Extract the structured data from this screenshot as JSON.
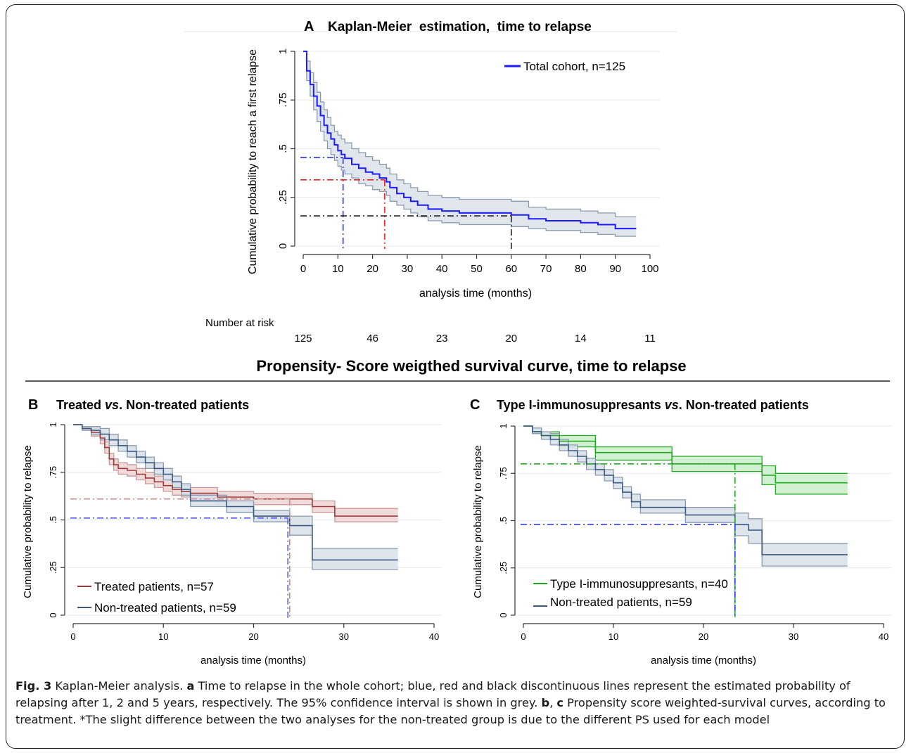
{
  "section_title": "Propensity- Score weigthed survival curve, time to relapse",
  "caption": {
    "label": "Fig. 3",
    "s1": " Kaplan-Meier analysis. ",
    "a": "a",
    "s2": " Time to relapse in the whole cohort; blue, red and black discontinuous lines represent the estimated probability of relapsing after 1, 2 and 5 years, respectively. The 95% confidence interval is shown in grey. ",
    "b": "b",
    "s3": ", ",
    "c": "c",
    "s4": " Propensity score weighted-survival curves, according to treatment. *The slight difference between the two analyses for the non-treated group is due to the different PS used for each model"
  },
  "chart_data": [
    {
      "type": "line",
      "panel_letter": "A",
      "title": "Kaplan-Meier  estimation,  time to relapse",
      "xlabel": "analysis time (months)",
      "ylabel": "Cumulative probability to reach a first relapse",
      "xlim": [
        0,
        100
      ],
      "ylim": [
        0,
        1
      ],
      "xticks": [
        "0",
        "10",
        "20",
        "30",
        "40",
        "50",
        "60",
        "70",
        "80",
        "90",
        "100"
      ],
      "yticks": [
        "0",
        ".25",
        ".5",
        ".75",
        "1"
      ],
      "grid": true,
      "legend_position": "top-right",
      "colors": {
        "line": "#1a1aff",
        "ci_fill": "#dde3ea",
        "ci_line": "#8a9bb0",
        "ref_1y": "#2233ee",
        "ref_2y": "#ee2222",
        "ref_5y": "#222222"
      },
      "series": [
        {
          "name": "Total cohort, n=125",
          "x": [
            0,
            1,
            2,
            3,
            4,
            5,
            6,
            7,
            8,
            9,
            10,
            11,
            12,
            14,
            16,
            18,
            20,
            22,
            24,
            25,
            27,
            29,
            31,
            33,
            36,
            40,
            45,
            50,
            60,
            65,
            70,
            80,
            85,
            90,
            96
          ],
          "y": [
            1.0,
            0.9,
            0.83,
            0.77,
            0.72,
            0.67,
            0.62,
            0.58,
            0.55,
            0.52,
            0.49,
            0.47,
            0.45,
            0.42,
            0.4,
            0.38,
            0.37,
            0.35,
            0.33,
            0.3,
            0.27,
            0.25,
            0.23,
            0.21,
            0.19,
            0.18,
            0.17,
            0.17,
            0.16,
            0.14,
            0.13,
            0.12,
            0.11,
            0.09,
            0.09
          ],
          "ci_lower": [
            1.0,
            0.85,
            0.77,
            0.7,
            0.64,
            0.59,
            0.54,
            0.5,
            0.47,
            0.44,
            0.41,
            0.39,
            0.37,
            0.35,
            0.32,
            0.31,
            0.29,
            0.28,
            0.26,
            0.23,
            0.21,
            0.19,
            0.17,
            0.15,
            0.13,
            0.12,
            0.11,
            0.11,
            0.1,
            0.09,
            0.08,
            0.07,
            0.06,
            0.05,
            0.05
          ],
          "ci_upper": [
            1.0,
            0.95,
            0.89,
            0.84,
            0.79,
            0.74,
            0.7,
            0.66,
            0.62,
            0.59,
            0.57,
            0.55,
            0.53,
            0.5,
            0.48,
            0.46,
            0.44,
            0.42,
            0.4,
            0.37,
            0.34,
            0.32,
            0.3,
            0.28,
            0.26,
            0.25,
            0.24,
            0.24,
            0.23,
            0.2,
            0.19,
            0.18,
            0.17,
            0.15,
            0.15
          ]
        }
      ],
      "reference_lines": [
        {
          "x": 11.5,
          "y": 0.455,
          "color": "ref_1y"
        },
        {
          "x": 23.5,
          "y": 0.34,
          "color": "ref_2y"
        },
        {
          "x": 60,
          "y": 0.155,
          "color": "ref_5y"
        }
      ],
      "risk_table": {
        "label": "Number at risk",
        "x": [
          0,
          20,
          40,
          60,
          80,
          100
        ],
        "values": [
          "125",
          "46",
          "23",
          "20",
          "14",
          "11"
        ]
      }
    },
    {
      "type": "line",
      "panel_letter": "B",
      "title": "Treated vs. Non-treated patients",
      "title_parts": {
        "pre": "Treated ",
        "italic": "vs",
        "post": ". Non-treated patients"
      },
      "xlabel": "analysis time (months)",
      "ylabel": "Cumulative probability to relapse",
      "xlim": [
        0,
        40
      ],
      "ylim": [
        0,
        1
      ],
      "xticks": [
        "0",
        "10",
        "20",
        "30",
        "40"
      ],
      "yticks": [
        "0",
        ".25",
        ".5",
        ".75",
        "1"
      ],
      "grid": true,
      "legend_position": "bottom-left",
      "series": [
        {
          "name": "Treated patients, n=57",
          "color": "#a03a3a",
          "fill": "#efd6d6",
          "edge": "#c99a9a",
          "x": [
            0,
            1,
            2,
            3,
            3.5,
            4,
            4.5,
            5,
            6,
            7,
            8,
            9,
            10,
            11,
            12,
            13,
            16,
            20,
            24,
            26.5,
            29,
            36
          ],
          "y": [
            1.0,
            0.98,
            0.96,
            0.93,
            0.88,
            0.82,
            0.79,
            0.77,
            0.76,
            0.74,
            0.72,
            0.7,
            0.68,
            0.66,
            0.65,
            0.64,
            0.62,
            0.61,
            0.61,
            0.57,
            0.52,
            0.52
          ],
          "ci_lower": [
            1.0,
            0.97,
            0.94,
            0.9,
            0.85,
            0.79,
            0.76,
            0.74,
            0.73,
            0.71,
            0.69,
            0.67,
            0.65,
            0.63,
            0.62,
            0.61,
            0.59,
            0.58,
            0.58,
            0.54,
            0.49,
            0.49
          ],
          "ci_upper": [
            1.0,
            0.99,
            0.98,
            0.96,
            0.91,
            0.85,
            0.82,
            0.8,
            0.79,
            0.77,
            0.75,
            0.73,
            0.71,
            0.69,
            0.68,
            0.67,
            0.65,
            0.64,
            0.64,
            0.6,
            0.56,
            0.56
          ]
        },
        {
          "name": "Non-treated patients, n=59",
          "color": "#3a5a80",
          "fill": "#d9e1ea",
          "edge": "#8a9bb0",
          "x": [
            0,
            1,
            2,
            3,
            4,
            5,
            6,
            7,
            8,
            9,
            10,
            11,
            12,
            13,
            17,
            20,
            24,
            26.5,
            36
          ],
          "y": [
            1.0,
            0.98,
            0.97,
            0.95,
            0.92,
            0.89,
            0.86,
            0.83,
            0.8,
            0.77,
            0.74,
            0.7,
            0.66,
            0.6,
            0.57,
            0.52,
            0.47,
            0.29,
            0.29
          ],
          "ci_lower": [
            1.0,
            0.97,
            0.95,
            0.92,
            0.89,
            0.86,
            0.83,
            0.8,
            0.77,
            0.74,
            0.71,
            0.67,
            0.63,
            0.57,
            0.54,
            0.49,
            0.42,
            0.24,
            0.24
          ],
          "ci_upper": [
            1.0,
            0.99,
            0.99,
            0.98,
            0.95,
            0.92,
            0.89,
            0.86,
            0.83,
            0.8,
            0.77,
            0.73,
            0.69,
            0.63,
            0.6,
            0.55,
            0.52,
            0.35,
            0.35
          ]
        }
      ],
      "reference_lines": [
        {
          "x": 24,
          "y": 0.61,
          "color": "#c48c8c"
        },
        {
          "x": 23.8,
          "y": 0.51,
          "color": "#5050ee"
        }
      ]
    },
    {
      "type": "line",
      "panel_letter": "C",
      "title": "Type I-immunosuppresants vs. Non-treated patients",
      "title_parts": {
        "pre": "Type I-immunosuppresants ",
        "italic": "vs",
        "post": ". Non-treated patients"
      },
      "xlabel": "analysis time (months)",
      "ylabel": "Cumulative probability to relapse",
      "xlim": [
        0,
        40
      ],
      "ylim": [
        0,
        1
      ],
      "xticks": [
        "0",
        "10",
        "20",
        "30",
        "40"
      ],
      "yticks": [
        "0",
        ".25",
        ".5",
        ".75",
        "1"
      ],
      "grid": true,
      "legend_position": "bottom-left",
      "series": [
        {
          "name": "Type I-immunosuppresants, n=40",
          "color": "#22aa22",
          "fill": "#cdeecd",
          "edge": "#22aa22",
          "x": [
            0,
            1,
            2,
            4,
            8,
            16.5,
            26.5,
            28,
            36
          ],
          "y": [
            1.0,
            0.97,
            0.95,
            0.92,
            0.86,
            0.8,
            0.74,
            0.7,
            0.7
          ],
          "ci_lower": [
            1.0,
            0.96,
            0.93,
            0.89,
            0.82,
            0.76,
            0.69,
            0.64,
            0.64
          ],
          "ci_upper": [
            1.0,
            0.99,
            0.97,
            0.95,
            0.89,
            0.84,
            0.79,
            0.75,
            0.75
          ]
        },
        {
          "name": "Non-treated patients, n=59",
          "color": "#3a5a80",
          "fill": "#d9e1ea",
          "edge": "#8a9bb0",
          "x": [
            0,
            1,
            2,
            3,
            4,
            5,
            6,
            7,
            8,
            9,
            10,
            11,
            12,
            13,
            18,
            23.5,
            25,
            26.5,
            36
          ],
          "y": [
            1.0,
            0.97,
            0.95,
            0.93,
            0.9,
            0.87,
            0.84,
            0.8,
            0.77,
            0.74,
            0.7,
            0.65,
            0.6,
            0.57,
            0.53,
            0.48,
            0.45,
            0.32,
            0.32
          ],
          "ci_lower": [
            1.0,
            0.96,
            0.93,
            0.9,
            0.87,
            0.84,
            0.81,
            0.77,
            0.74,
            0.71,
            0.67,
            0.62,
            0.57,
            0.54,
            0.49,
            0.42,
            0.38,
            0.26,
            0.26
          ],
          "ci_upper": [
            1.0,
            0.99,
            0.97,
            0.96,
            0.93,
            0.9,
            0.87,
            0.83,
            0.8,
            0.77,
            0.73,
            0.68,
            0.64,
            0.61,
            0.57,
            0.54,
            0.51,
            0.38,
            0.38
          ]
        }
      ],
      "reference_lines": [
        {
          "x": 23.5,
          "y": 0.8,
          "color": "#22aa22"
        },
        {
          "x": 23.5,
          "y": 0.48,
          "color": "#2233ee"
        }
      ]
    }
  ]
}
